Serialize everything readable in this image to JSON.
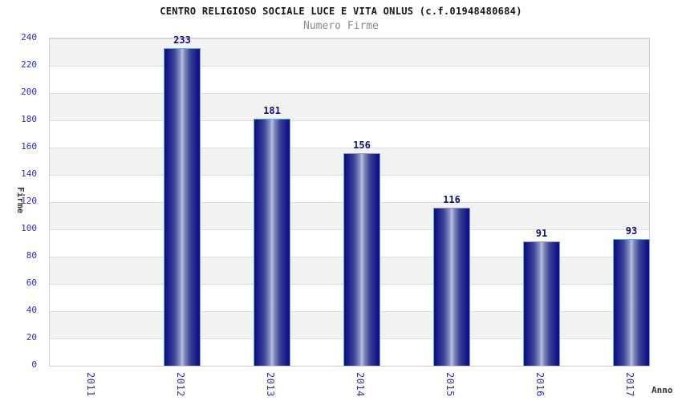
{
  "chart_data": {
    "type": "bar",
    "title": "CENTRO RELIGIOSO SOCIALE LUCE E VITA ONLUS (c.f.01948480684)",
    "subtitle": "Numero Firme",
    "xlabel": "Anno",
    "ylabel": "Firme",
    "categories": [
      "2011",
      "2012",
      "2013",
      "2014",
      "2015",
      "2016",
      "2017"
    ],
    "values": [
      0,
      233,
      181,
      156,
      116,
      91,
      93
    ],
    "ylim": [
      0,
      240
    ],
    "ytick_step": 20,
    "grid": "horizontal-bands-alternating-gray-white",
    "legend": "none",
    "value_labels_visible": true,
    "colors": {
      "bar_dark": "#0e107e",
      "bar_highlight": "#bcc3e0",
      "bar_border": "#6fa8dc",
      "tick_label_blue": "#2d2dcb",
      "value_label_navy": "#10107a",
      "title": "#15151e",
      "subtitle": "#8c8c8c",
      "band_gray": "#f2f2f2",
      "plot_border": "#cccccc"
    }
  }
}
